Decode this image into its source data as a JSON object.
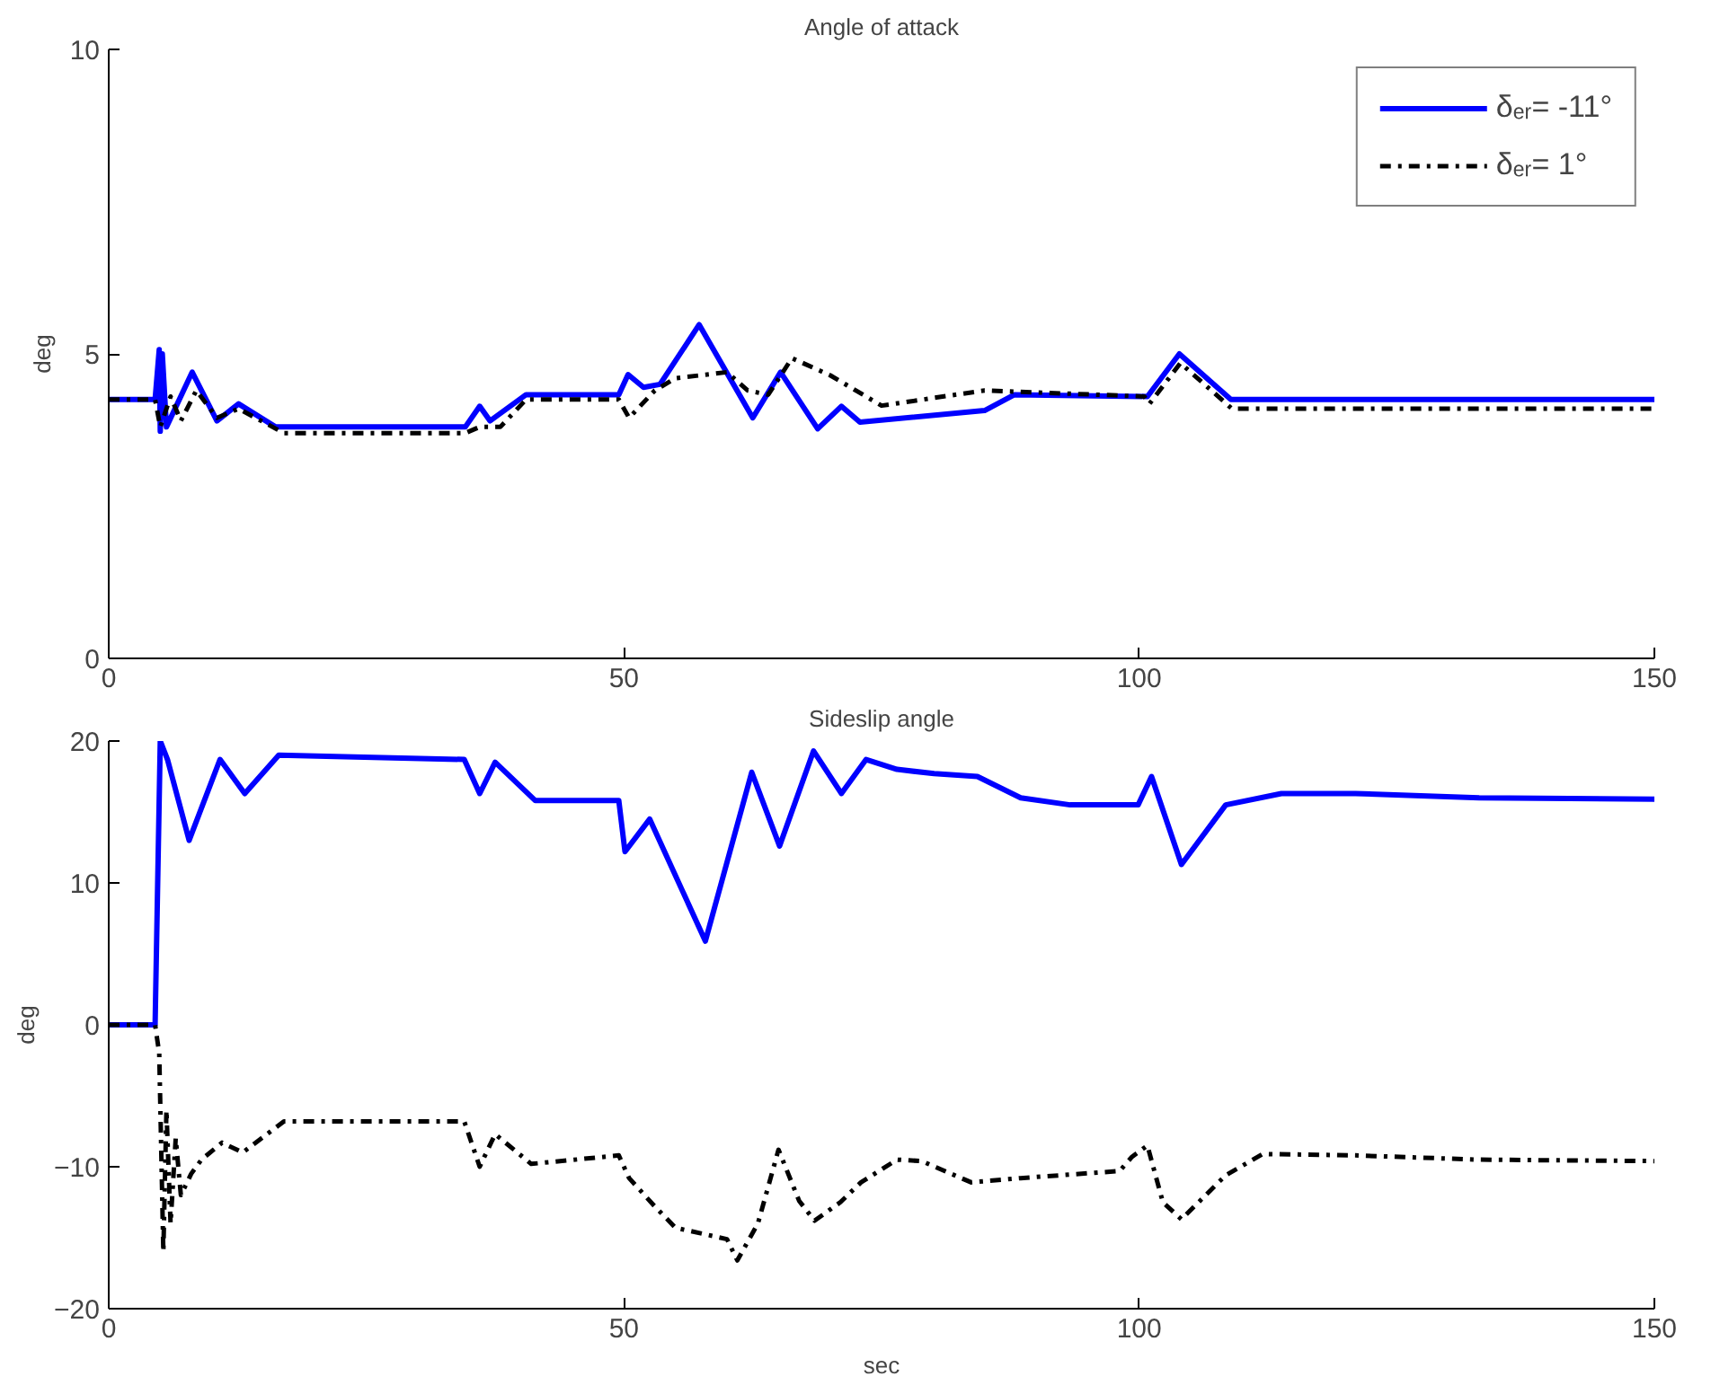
{
  "chart_data": [
    {
      "type": "line",
      "title": "Angle of attack",
      "ylabel": "deg",
      "xlim": [
        0,
        150
      ],
      "xticks": [
        0,
        50,
        100,
        150
      ],
      "ylim": [
        0,
        10
      ],
      "yticks": [
        0,
        5,
        10
      ],
      "grid": false,
      "legend": "top right",
      "series": [
        {
          "name": "δₑᵣ= -11°",
          "color": "#0000ff",
          "line_style": "solid",
          "x": [
            0,
            4.5,
            4.9,
            5.0,
            5.2,
            5.6,
            8.1,
            10.5,
            12.6,
            16.2,
            34.6,
            36,
            37,
            40.5,
            49.5,
            50.4,
            51.9,
            53.5,
            57.3,
            62.5,
            65.2,
            68.8,
            71.1,
            72.9,
            85,
            87.9,
            100.8,
            103.9,
            108.9,
            150
          ],
          "values": [
            4.25,
            4.25,
            5.07,
            3.73,
            5.0,
            3.8,
            4.7,
            3.9,
            4.18,
            3.8,
            3.8,
            4.14,
            3.9,
            4.33,
            4.33,
            4.66,
            4.45,
            4.5,
            5.48,
            3.95,
            4.7,
            3.77,
            4.14,
            3.88,
            4.07,
            4.33,
            4.3,
            5.0,
            4.25,
            4.25
          ]
        },
        {
          "name": "δₑᵣ= 1°",
          "color": "#000000",
          "line_style": "dashdot",
          "x": [
            0,
            4.5,
            5,
            6,
            7,
            8.5,
            10.5,
            12.6,
            17,
            34.6,
            36,
            38,
            40.5,
            49.5,
            50.5,
            53,
            55,
            60,
            62,
            64,
            66.3,
            70,
            75,
            85,
            100.5,
            101,
            104,
            109,
            150
          ],
          "values": [
            4.25,
            4.25,
            3.8,
            4.3,
            3.9,
            4.4,
            3.95,
            4.1,
            3.7,
            3.7,
            3.8,
            3.8,
            4.25,
            4.25,
            3.95,
            4.4,
            4.6,
            4.7,
            4.4,
            4.33,
            4.93,
            4.65,
            4.15,
            4.4,
            4.3,
            4.18,
            4.85,
            4.1,
            4.1
          ]
        }
      ]
    },
    {
      "type": "line",
      "title": "Sideslip angle",
      "xlabel": "sec",
      "ylabel": "deg",
      "xlim": [
        0,
        150
      ],
      "xticks": [
        0,
        50,
        100,
        150
      ],
      "ylim": [
        -20,
        20
      ],
      "yticks": [
        -20,
        -10,
        0,
        10,
        20
      ],
      "grid": false,
      "series": [
        {
          "color": "#0000ff",
          "line_style": "solid",
          "x": [
            0,
            4.5,
            5,
            5.7,
            7.8,
            10.8,
            13.2,
            16.5,
            34.5,
            36,
            37.5,
            41.4,
            49.5,
            50.1,
            52.5,
            57.9,
            62.4,
            65.1,
            68.4,
            71.1,
            73.5,
            76.5,
            80.1,
            84.3,
            88.5,
            93.3,
            99.9,
            101.2,
            104.1,
            108.4,
            113.8,
            121,
            133,
            150
          ],
          "values": [
            0,
            0,
            20,
            18.7,
            13.0,
            18.7,
            16.3,
            19.0,
            18.7,
            16.3,
            18.5,
            15.8,
            15.8,
            12.2,
            14.5,
            5.9,
            17.8,
            12.6,
            19.3,
            16.3,
            18.7,
            18.0,
            17.7,
            17.5,
            16.0,
            15.5,
            15.5,
            17.5,
            11.3,
            15.5,
            16.3,
            16.3,
            16.0,
            15.9
          ]
        },
        {
          "color": "#000000",
          "line_style": "dashdot",
          "x": [
            0,
            4.5,
            4.9,
            5.3,
            5.6,
            6,
            6.5,
            7,
            8,
            9,
            11,
            13,
            17,
            34.5,
            36,
            37.5,
            41,
            49.5,
            50.5,
            53,
            55,
            60,
            61,
            63,
            65,
            67,
            68.5,
            71,
            73,
            76.5,
            78.9,
            83.7,
            88.5,
            98.1,
            99.3,
            100.8,
            102.3,
            104.1,
            108.4,
            112,
            121,
            133,
            150
          ],
          "values": [
            0,
            0,
            -2,
            -16,
            -6,
            -14,
            -8,
            -12,
            -10.5,
            -9.5,
            -8.3,
            -9,
            -6.8,
            -6.8,
            -10,
            -7.7,
            -9.8,
            -9.2,
            -10.8,
            -12.8,
            -14.3,
            -15.1,
            -16.6,
            -14,
            -8.8,
            -12.4,
            -13.8,
            -12.5,
            -11.1,
            -9.5,
            -9.6,
            -11.1,
            -10.8,
            -10.3,
            -9.3,
            -8.5,
            -12.5,
            -13.7,
            -10.6,
            -9.1,
            -9.2,
            -9.5,
            -9.6
          ]
        }
      ]
    }
  ]
}
